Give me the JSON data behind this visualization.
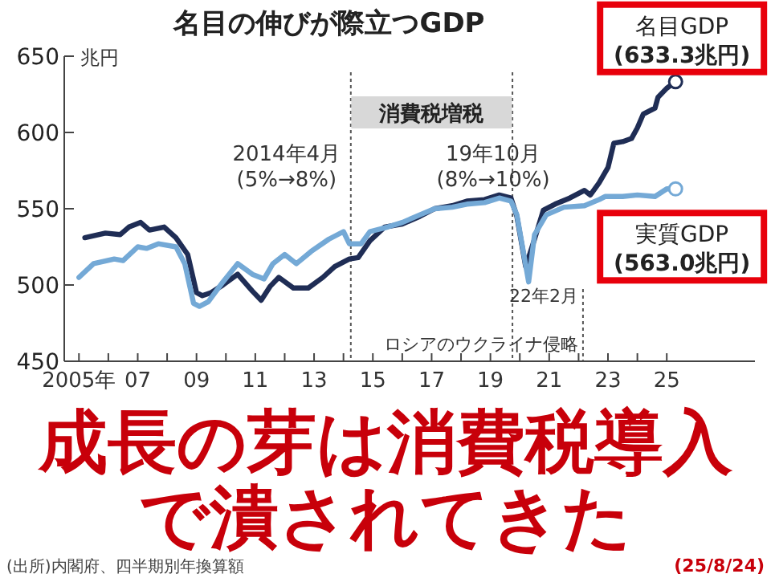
{
  "chart_data": {
    "type": "line",
    "title": "名目の伸びが際立つGDP",
    "ylabel": "兆円",
    "xlim": [
      2004.5,
      2028
    ],
    "ylim": [
      450,
      650
    ],
    "yticks": [
      450,
      500,
      550,
      600,
      650
    ],
    "xticks": [
      {
        "value": 2005,
        "label": "2005年"
      },
      {
        "value": 2006,
        "label": null
      },
      {
        "value": 2007,
        "label": "07"
      },
      {
        "value": 2008,
        "label": null
      },
      {
        "value": 2009,
        "label": "09"
      },
      {
        "value": 2010,
        "label": null
      },
      {
        "value": 2011,
        "label": "11"
      },
      {
        "value": 2012,
        "label": null
      },
      {
        "value": 2013,
        "label": "13"
      },
      {
        "value": 2014,
        "label": null
      },
      {
        "value": 2015,
        "label": "15"
      },
      {
        "value": 2016,
        "label": null
      },
      {
        "value": 2017,
        "label": "17"
      },
      {
        "value": 2018,
        "label": null
      },
      {
        "value": 2019,
        "label": "19"
      },
      {
        "value": 2020,
        "label": null
      },
      {
        "value": 2021,
        "label": "21"
      },
      {
        "value": 2022,
        "label": null
      },
      {
        "value": 2023,
        "label": "23"
      },
      {
        "value": 2024,
        "label": null
      },
      {
        "value": 2025,
        "label": "25"
      }
    ],
    "series": [
      {
        "name": "名目GDP",
        "color": "#1f2d55",
        "x": [
          2005.2,
          2005.9,
          2006.4,
          2006.7,
          2007.1,
          2007.4,
          2007.9,
          2008.3,
          2008.7,
          2009.0,
          2009.2,
          2009.5,
          2009.9,
          2010.4,
          2010.9,
          2011.2,
          2011.5,
          2011.8,
          2012.3,
          2012.8,
          2013.3,
          2013.7,
          2014.2,
          2014.5,
          2014.9,
          2015.4,
          2016.0,
          2016.6,
          2017.1,
          2017.7,
          2018.2,
          2018.8,
          2019.3,
          2019.7,
          2019.9,
          2020.2,
          2020.5,
          2020.8,
          2021.2,
          2021.7,
          2022.2,
          2022.4,
          2022.7,
          2023.0,
          2023.2,
          2023.5,
          2023.8,
          2024.0,
          2024.2,
          2024.6,
          2024.7,
          2025.0,
          2025.3
        ],
        "values": [
          531,
          534,
          533,
          538,
          541,
          536,
          538,
          531,
          520,
          495,
          493,
          495,
          500,
          507,
          496,
          490,
          499,
          505,
          498,
          498,
          505,
          512,
          517,
          518,
          529,
          538,
          540,
          545,
          550,
          552,
          555,
          556,
          559,
          557,
          545,
          512,
          530,
          549,
          553,
          557,
          562,
          559,
          567,
          577,
          593,
          594,
          596,
          603,
          612,
          616,
          623,
          629,
          633.3
        ]
      },
      {
        "name": "実質GDP",
        "color": "#74a9d6",
        "x": [
          2005.0,
          2005.5,
          2006.2,
          2006.5,
          2007.0,
          2007.3,
          2007.7,
          2008.3,
          2008.6,
          2008.9,
          2009.1,
          2009.4,
          2009.9,
          2010.4,
          2010.9,
          2011.3,
          2011.6,
          2012.0,
          2012.4,
          2012.9,
          2013.5,
          2014.0,
          2014.2,
          2014.6,
          2014.9,
          2015.5,
          2016.0,
          2016.6,
          2017.1,
          2017.7,
          2018.2,
          2018.8,
          2019.3,
          2019.7,
          2019.9,
          2020.3,
          2020.5,
          2020.9,
          2021.5,
          2022.2,
          2022.7,
          2022.9,
          2023.5,
          2024.0,
          2024.6,
          2025.0,
          2025.3
        ],
        "values": [
          505,
          514,
          517,
          516,
          525,
          524,
          527,
          525,
          514,
          488,
          486,
          489,
          502,
          514,
          507,
          504,
          514,
          520,
          514,
          522,
          530,
          535,
          527,
          527,
          535,
          538,
          541,
          546,
          550,
          551,
          553,
          554,
          557,
          555,
          546,
          502,
          533,
          546,
          551,
          552,
          556,
          558,
          558,
          559,
          558,
          563,
          563.0
        ]
      }
    ],
    "ref_lines": [
      {
        "axis": "x",
        "value": 2014.25,
        "label": "2014年4月\n(5%→8%)",
        "line_style": "dotted"
      },
      {
        "axis": "x",
        "value": 2019.75,
        "label": "19年10月\n(8%→10%)",
        "line_style": "dotted"
      },
      {
        "axis": "x",
        "value": 2022.15,
        "label": "22年2月",
        "line_style": "dotted"
      }
    ],
    "annotations": [
      "消費税増税",
      {
        "text": "(633.3兆円)",
        "x": 2025.3,
        "y": 633.3
      },
      {
        "text": "(563.0兆円)",
        "x": 2025.3,
        "y": 563.0
      },
      "ロシアのウクライナ侵略",
      "成長の芽は消費税導入",
      "で潰されてきた",
      "(出所)内閣府、四半期別年換算額",
      "(25/8/24)"
    ]
  }
}
